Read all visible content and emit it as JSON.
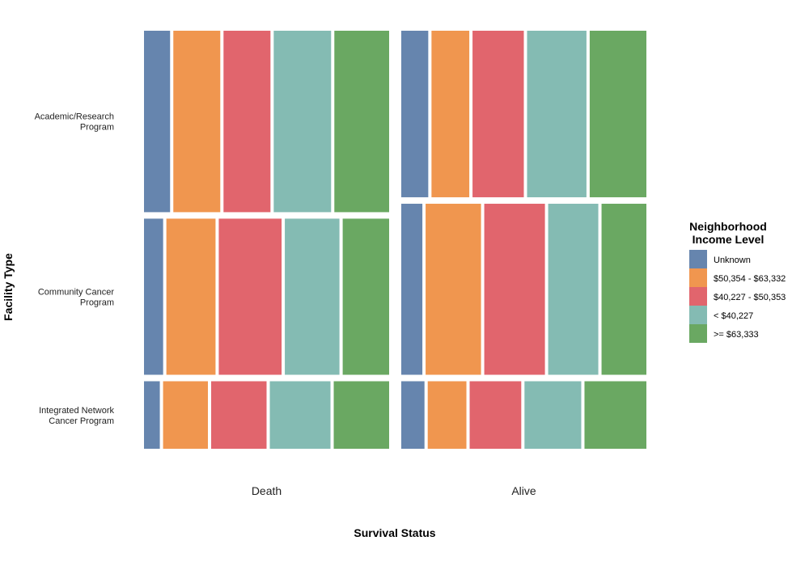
{
  "chart_data": {
    "type": "mosaic",
    "xlabel": "Survival Status",
    "ylabel": "Facility Type",
    "x_categories": [
      "Death",
      "Alive"
    ],
    "x_widths": [
      0.5,
      0.5
    ],
    "y_categories": [
      "Academic/Research\nProgram",
      "Community Cancer\nProgram",
      "Integrated Network\nCancer Program"
    ],
    "y_shares": {
      "Death": [
        0.43,
        0.37,
        0.16
      ],
      "Alive": [
        0.37,
        0.38,
        0.15
      ]
    },
    "legend_title": "Neighborhood\nIncome Level",
    "legend_placement": "right",
    "series": [
      {
        "name": "Unknown",
        "color": "#6685ae"
      },
      {
        "name": "$50,354 - $63,332",
        "color": "#f0964f"
      },
      {
        "name": "$40,227 - $50,353",
        "color": "#e1656d"
      },
      {
        "name": "< $40,227",
        "color": "#84bbb3"
      },
      {
        "name": ">= $63,333",
        "color": "#6aa862"
      }
    ],
    "income_shares": {
      "Death": {
        "Academic/Research\nProgram": [
          0.1,
          0.18,
          0.18,
          0.22,
          0.21
        ],
        "Community Cancer\nProgram": [
          0.07,
          0.18,
          0.23,
          0.2,
          0.17
        ],
        "Integrated Network\nCancer Program": [
          0.06,
          0.17,
          0.21,
          0.23,
          0.21
        ]
      },
      "Alive": {
        "Academic/Research\nProgram": [
          0.1,
          0.14,
          0.19,
          0.22,
          0.21
        ],
        "Community Cancer\nProgram": [
          0.08,
          0.21,
          0.23,
          0.19,
          0.17
        ],
        "Integrated Network\nCancer Program": [
          0.09,
          0.15,
          0.2,
          0.22,
          0.24
        ]
      }
    }
  }
}
